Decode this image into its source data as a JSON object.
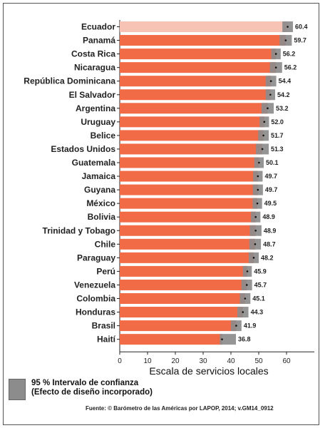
{
  "chart_data": {
    "type": "bar",
    "orientation": "horizontal",
    "xlabel": "Escala de servicios locales",
    "xlim": [
      0,
      70
    ],
    "xticks": [
      0,
      10,
      20,
      30,
      40,
      50,
      60
    ],
    "bar_color": "#f26b47",
    "highlight_color": "#f7c3b5",
    "ci_color": "#8c8c8c",
    "categories": [
      "Ecuador",
      "Panamá",
      "Costa Rica",
      "Nicaragua",
      "República Dominicana",
      "El Salvador",
      "Argentina",
      "Uruguay",
      "Belice",
      "Estados Unidos",
      "Guatemala",
      "Jamaica",
      "Guyana",
      "México",
      "Bolivia",
      "Trinidad y Tobago",
      "Chile",
      "Paraguay",
      "Perú",
      "Venezuela",
      "Colombia",
      "Honduras",
      "Brasil",
      "Haití"
    ],
    "values": [
      60.4,
      59.7,
      56.2,
      56.2,
      54.4,
      54.2,
      53.2,
      52.0,
      51.7,
      51.3,
      50.1,
      49.7,
      49.7,
      49.5,
      48.9,
      48.9,
      48.7,
      48.2,
      45.9,
      45.7,
      45.1,
      44.3,
      41.9,
      36.8
    ],
    "value_labels": [
      "60.4",
      "59.7",
      "56.2",
      "56.2",
      "54.4",
      "54.2",
      "53.2",
      "52.0",
      "51.7",
      "51.3",
      "50.1",
      "49.7",
      "49.7",
      "49.5",
      "48.9",
      "48.9",
      "48.7",
      "48.2",
      "45.9",
      "45.7",
      "45.1",
      "44.3",
      "41.9",
      "36.8"
    ],
    "ci_low": [
      58.5,
      57.5,
      54.5,
      54.0,
      52.5,
      52.5,
      51.0,
      50.3,
      49.8,
      49.0,
      48.4,
      48.0,
      47.9,
      47.8,
      47.2,
      46.8,
      46.6,
      46.4,
      44.3,
      43.8,
      43.2,
      42.3,
      40.0,
      36.0
    ],
    "ci_high": [
      62.3,
      61.9,
      57.9,
      58.4,
      56.3,
      55.9,
      55.4,
      53.7,
      53.6,
      53.6,
      51.8,
      51.4,
      51.5,
      51.2,
      50.6,
      51.0,
      50.8,
      50.0,
      47.5,
      47.6,
      47.0,
      46.3,
      43.8,
      41.8
    ]
  },
  "legend": {
    "line1": "95 % Intervalo de confianza",
    "line2": "(Efecto de diseño incorporado)"
  },
  "source": "Fuente: © Barómetro de las Américas por LAPOP, 2014; v.GM14_0912"
}
